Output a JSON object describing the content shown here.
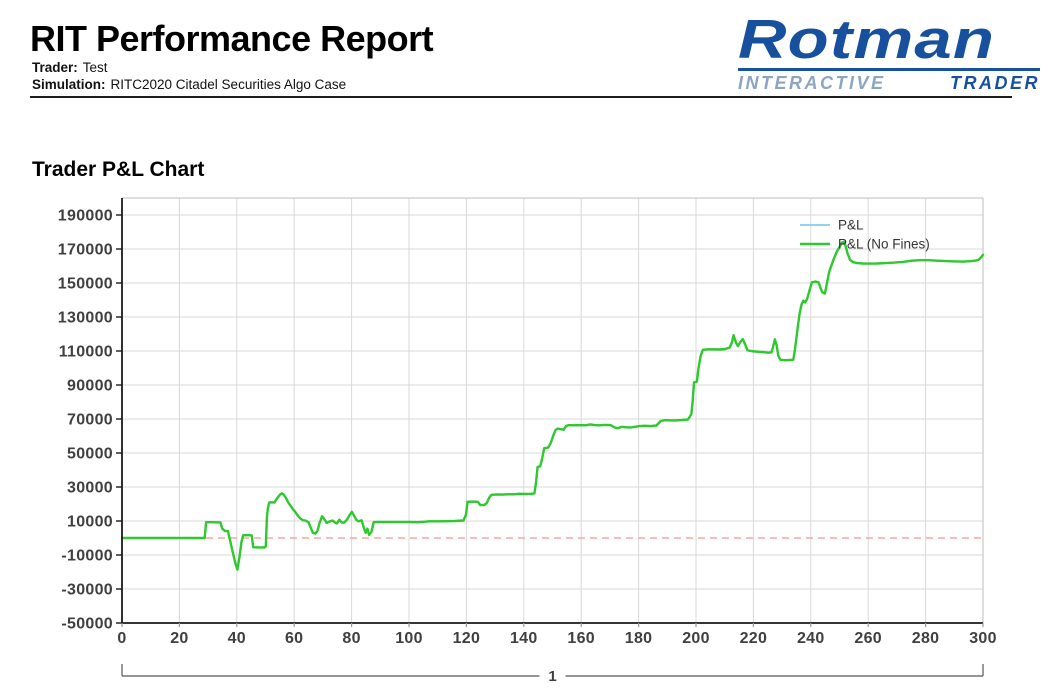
{
  "header": {
    "title": "RIT Performance Report",
    "trader_label": "Trader:",
    "trader_value": "Test",
    "simulation_label": "Simulation:",
    "simulation_value": "RITC2020 Citadel Securities Algo Case"
  },
  "logo": {
    "brand": "Rotman",
    "subtitle_left": "INTERACTIVE",
    "subtitle_right": "TRADER",
    "brand_color": "#17519e",
    "subtitle_left_color": "#8ca5c2",
    "subtitle_right_color": "#17519e"
  },
  "chart": {
    "section_title": "Trader P&L Chart",
    "group_label": "1"
  },
  "chart_data": {
    "type": "line",
    "title": "Trader P&L Chart",
    "xlabel": "",
    "ylabel": "",
    "xlim": [
      0,
      300
    ],
    "ylim": [
      -50000,
      200000
    ],
    "x_ticks": [
      0,
      20,
      40,
      60,
      80,
      100,
      120,
      140,
      160,
      180,
      200,
      220,
      240,
      260,
      280,
      300
    ],
    "y_ticks": [
      190000,
      170000,
      150000,
      130000,
      110000,
      90000,
      70000,
      50000,
      30000,
      10000,
      -10000,
      -30000,
      -50000
    ],
    "grid": true,
    "legend_position": "top-right-inside",
    "colors": {
      "grid": "#d8d8d8",
      "frame": "#c9c9c9",
      "axis": "#1a1a1a",
      "tick_label": "#3f3f3f",
      "zero_line": "#f5a9a4",
      "pnl": "#8ed3f0",
      "pnl_no_fines": "#2fc82f"
    },
    "zero_line": {
      "value": 0,
      "style": "dashed"
    },
    "series": [
      {
        "name": "P&L",
        "color": "#8ed3f0",
        "width": 2
      },
      {
        "name": "P&L (No Fines)",
        "color": "#2fc82f",
        "width": 2.4
      }
    ],
    "points": [
      [
        0,
        0
      ],
      [
        12,
        0
      ],
      [
        24,
        0
      ],
      [
        28.8,
        0
      ],
      [
        29.3,
        9300
      ],
      [
        31.5,
        9300
      ],
      [
        33.5,
        9200
      ],
      [
        34.3,
        9200
      ],
      [
        34.9,
        5600
      ],
      [
        35.9,
        4100
      ],
      [
        36.9,
        4100
      ],
      [
        37.6,
        -1000
      ],
      [
        38.6,
        -8500
      ],
      [
        39.5,
        -15000
      ],
      [
        40.2,
        -18600
      ],
      [
        40.9,
        -11500
      ],
      [
        41.6,
        -2500
      ],
      [
        42.2,
        1600
      ],
      [
        43.5,
        1700
      ],
      [
        45.2,
        1500
      ],
      [
        45.7,
        -5400
      ],
      [
        47.5,
        -5500
      ],
      [
        49.6,
        -5600
      ],
      [
        50.1,
        -5000
      ],
      [
        50.5,
        12000
      ],
      [
        50.8,
        17300
      ],
      [
        51.3,
        20900
      ],
      [
        52.2,
        21000
      ],
      [
        53.1,
        20800
      ],
      [
        53.7,
        22500
      ],
      [
        54.4,
        24100
      ],
      [
        55.1,
        25600
      ],
      [
        55.7,
        26300
      ],
      [
        56.3,
        25600
      ],
      [
        57.1,
        23600
      ],
      [
        57.9,
        21000
      ],
      [
        58.7,
        19000
      ],
      [
        59.6,
        16800
      ],
      [
        60.4,
        15300
      ],
      [
        61.2,
        13300
      ],
      [
        62.1,
        11500
      ],
      [
        63.1,
        10400
      ],
      [
        64.1,
        10200
      ],
      [
        65,
        9200
      ],
      [
        65.9,
        5500
      ],
      [
        66.5,
        3000
      ],
      [
        67.4,
        2600
      ],
      [
        68.1,
        4200
      ],
      [
        68.9,
        9000
      ],
      [
        69.7,
        12800
      ],
      [
        70.5,
        11200
      ],
      [
        71.3,
        8900
      ],
      [
        72.3,
        9700
      ],
      [
        73.3,
        10300
      ],
      [
        74.3,
        9000
      ],
      [
        74.9,
        8600
      ],
      [
        75.7,
        10800
      ],
      [
        76.5,
        9200
      ],
      [
        77.4,
        9000
      ],
      [
        78.3,
        10600
      ],
      [
        79.3,
        13500
      ],
      [
        80.1,
        15400
      ],
      [
        80.9,
        13000
      ],
      [
        81.7,
        10500
      ],
      [
        82.5,
        9800
      ],
      [
        83.5,
        10400
      ],
      [
        84.3,
        6000
      ],
      [
        84.9,
        3000
      ],
      [
        85.5,
        5500
      ],
      [
        86.1,
        1800
      ],
      [
        86.9,
        3500
      ],
      [
        87.7,
        9300
      ],
      [
        88.8,
        9500
      ],
      [
        90,
        9400
      ],
      [
        93,
        9400
      ],
      [
        96,
        9400
      ],
      [
        100,
        9400
      ],
      [
        103,
        9300
      ],
      [
        105.5,
        9600
      ],
      [
        107,
        9800
      ],
      [
        110,
        9800
      ],
      [
        113,
        9900
      ],
      [
        116,
        10000
      ],
      [
        119,
        10300
      ],
      [
        119.9,
        14000
      ],
      [
        120.4,
        21300
      ],
      [
        122,
        21400
      ],
      [
        124,
        21300
      ],
      [
        124.8,
        19400
      ],
      [
        126.2,
        19400
      ],
      [
        127.1,
        20600
      ],
      [
        127.9,
        23600
      ],
      [
        128.7,
        25400
      ],
      [
        130.5,
        25600
      ],
      [
        132.5,
        25500
      ],
      [
        134.5,
        25700
      ],
      [
        136.5,
        25700
      ],
      [
        138.5,
        26000
      ],
      [
        140.5,
        25900
      ],
      [
        142.5,
        26000
      ],
      [
        143.7,
        26200
      ],
      [
        144.3,
        33000
      ],
      [
        144.8,
        41800
      ],
      [
        145.7,
        42200
      ],
      [
        146.3,
        46000
      ],
      [
        147.1,
        52800
      ],
      [
        148.5,
        53200
      ],
      [
        149.4,
        56000
      ],
      [
        150.3,
        60500
      ],
      [
        151.1,
        63600
      ],
      [
        151.9,
        64400
      ],
      [
        152.9,
        64000
      ],
      [
        153.9,
        63700
      ],
      [
        154.7,
        65800
      ],
      [
        155.6,
        66400
      ],
      [
        157.5,
        66300
      ],
      [
        159.5,
        66400
      ],
      [
        161.5,
        66300
      ],
      [
        163.2,
        66800
      ],
      [
        164.7,
        66400
      ],
      [
        166.2,
        66300
      ],
      [
        168.2,
        66500
      ],
      [
        170.2,
        66400
      ],
      [
        171.7,
        65000
      ],
      [
        172.7,
        64500
      ],
      [
        174.2,
        65400
      ],
      [
        175.7,
        65100
      ],
      [
        177.2,
        65000
      ],
      [
        178.7,
        65400
      ],
      [
        180.2,
        65800
      ],
      [
        182.2,
        66000
      ],
      [
        184.2,
        65800
      ],
      [
        186.2,
        66200
      ],
      [
        187.7,
        68800
      ],
      [
        189.2,
        69300
      ],
      [
        191.2,
        69200
      ],
      [
        193.2,
        69200
      ],
      [
        195.2,
        69400
      ],
      [
        197.2,
        69700
      ],
      [
        197.9,
        71500
      ],
      [
        198.4,
        73200
      ],
      [
        198.8,
        80000
      ],
      [
        199.3,
        91500
      ],
      [
        200.3,
        92000
      ],
      [
        200.8,
        99000
      ],
      [
        201.6,
        107000
      ],
      [
        202.4,
        110700
      ],
      [
        204.2,
        111000
      ],
      [
        206.2,
        111000
      ],
      [
        208.2,
        110900
      ],
      [
        210.2,
        111200
      ],
      [
        211.7,
        112000
      ],
      [
        212.5,
        115000
      ],
      [
        213.1,
        119300
      ],
      [
        213.9,
        115000
      ],
      [
        214.6,
        112900
      ],
      [
        215.5,
        115500
      ],
      [
        216.3,
        117000
      ],
      [
        217.1,
        114000
      ],
      [
        217.9,
        110400
      ],
      [
        219.2,
        110000
      ],
      [
        220.7,
        109700
      ],
      [
        222.2,
        109500
      ],
      [
        223.7,
        109300
      ],
      [
        225.2,
        109000
      ],
      [
        226.3,
        109200
      ],
      [
        227,
        113500
      ],
      [
        227.5,
        116800
      ],
      [
        228.1,
        113500
      ],
      [
        228.7,
        107000
      ],
      [
        229.4,
        104800
      ],
      [
        231.2,
        104600
      ],
      [
        232.7,
        104700
      ],
      [
        233.9,
        104900
      ],
      [
        234.5,
        111000
      ],
      [
        235.3,
        122000
      ],
      [
        236.1,
        132000
      ],
      [
        236.8,
        137500
      ],
      [
        237.4,
        139500
      ],
      [
        238,
        138500
      ],
      [
        238.7,
        140500
      ],
      [
        239.5,
        145500
      ],
      [
        240.4,
        150400
      ],
      [
        241.6,
        150800
      ],
      [
        242.7,
        150400
      ],
      [
        243.4,
        147000
      ],
      [
        244,
        144600
      ],
      [
        244.9,
        143800
      ],
      [
        245.5,
        148800
      ],
      [
        246.4,
        156600
      ],
      [
        247.3,
        161000
      ],
      [
        248.1,
        164500
      ],
      [
        249.1,
        168500
      ],
      [
        250.1,
        171500
      ],
      [
        250.9,
        173800
      ],
      [
        251.5,
        174200
      ],
      [
        252.1,
        172000
      ],
      [
        252.8,
        167500
      ],
      [
        253.7,
        163500
      ],
      [
        254.7,
        162300
      ],
      [
        256.1,
        161700
      ],
      [
        258.1,
        161500
      ],
      [
        260.1,
        161400
      ],
      [
        263.1,
        161500
      ],
      [
        266.1,
        161700
      ],
      [
        269.1,
        162000
      ],
      [
        272.1,
        162400
      ],
      [
        275.1,
        163100
      ],
      [
        278.1,
        163400
      ],
      [
        281.1,
        163400
      ],
      [
        284.1,
        163100
      ],
      [
        287.1,
        162900
      ],
      [
        290.1,
        162700
      ],
      [
        293.1,
        162600
      ],
      [
        295.6,
        162800
      ],
      [
        297.1,
        163100
      ],
      [
        298.4,
        163600
      ],
      [
        299.2,
        164800
      ],
      [
        300,
        166600
      ]
    ]
  }
}
